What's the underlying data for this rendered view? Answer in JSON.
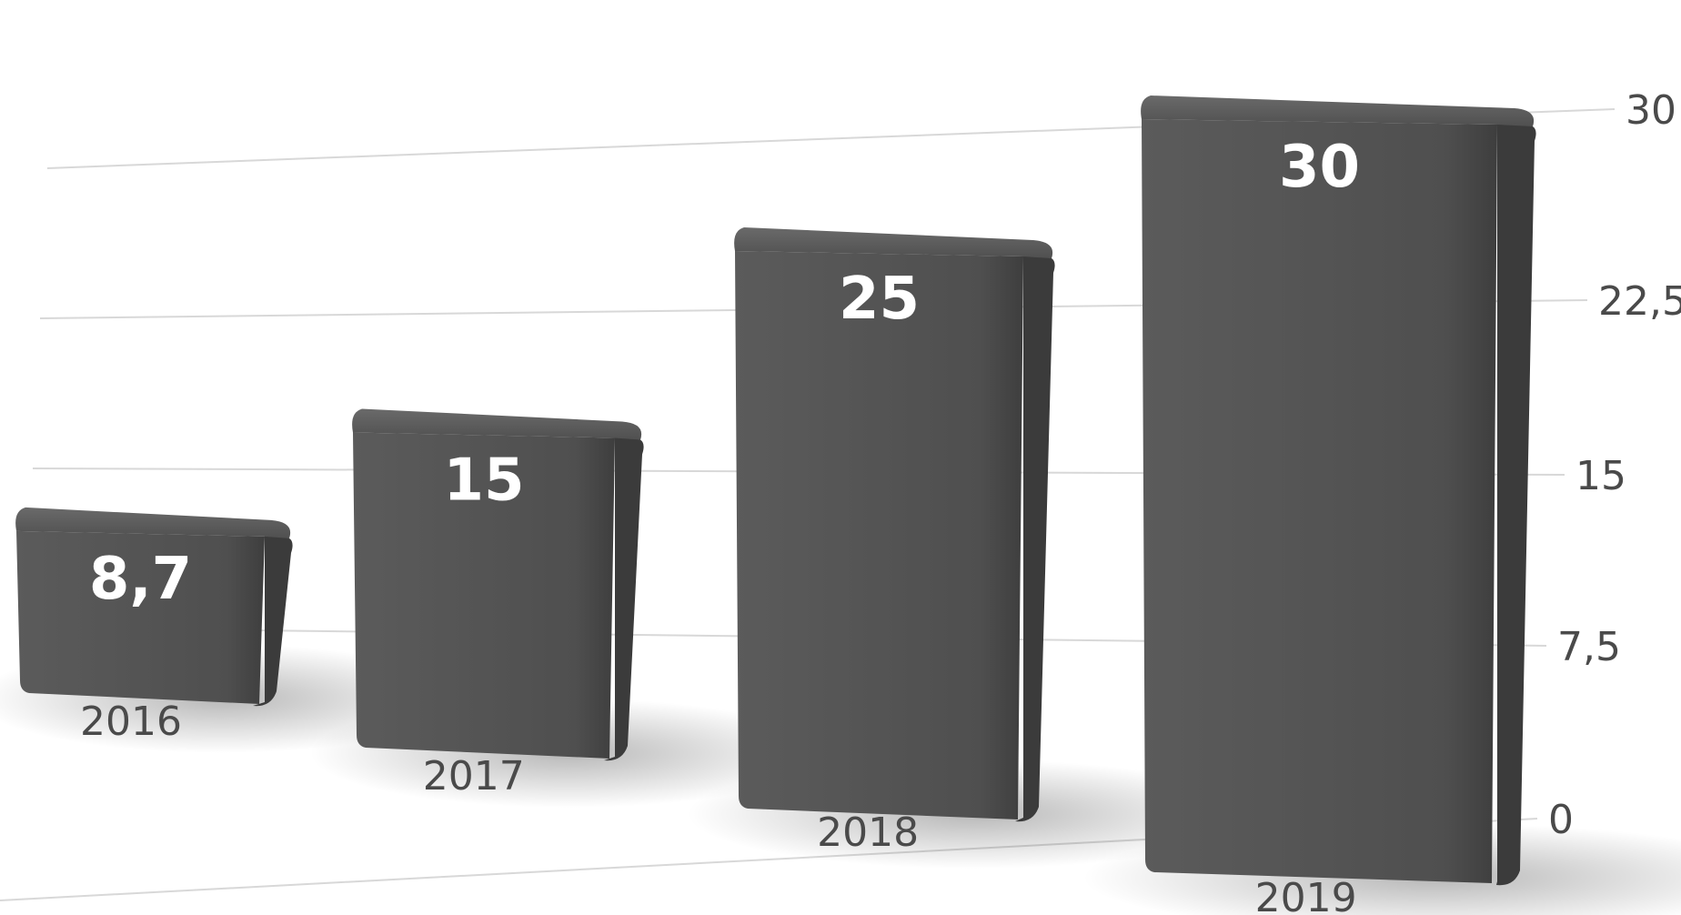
{
  "chart_data": {
    "type": "bar",
    "categories": [
      "2016",
      "2017",
      "2018",
      "2019"
    ],
    "values": [
      8.7,
      15,
      25,
      30
    ],
    "value_labels": [
      "8,7",
      "15",
      "25",
      "30"
    ],
    "y_ticks": [
      0,
      7.5,
      15,
      22.5,
      30
    ],
    "y_tick_labels": [
      "0",
      "7,5",
      "15",
      "22,5",
      "30"
    ],
    "ylim": [
      0,
      30
    ],
    "grid": true,
    "y_axis_side": "right",
    "style": "3d-perspective",
    "bar_color": "#555555",
    "grid_color": "#d8d8d8"
  }
}
